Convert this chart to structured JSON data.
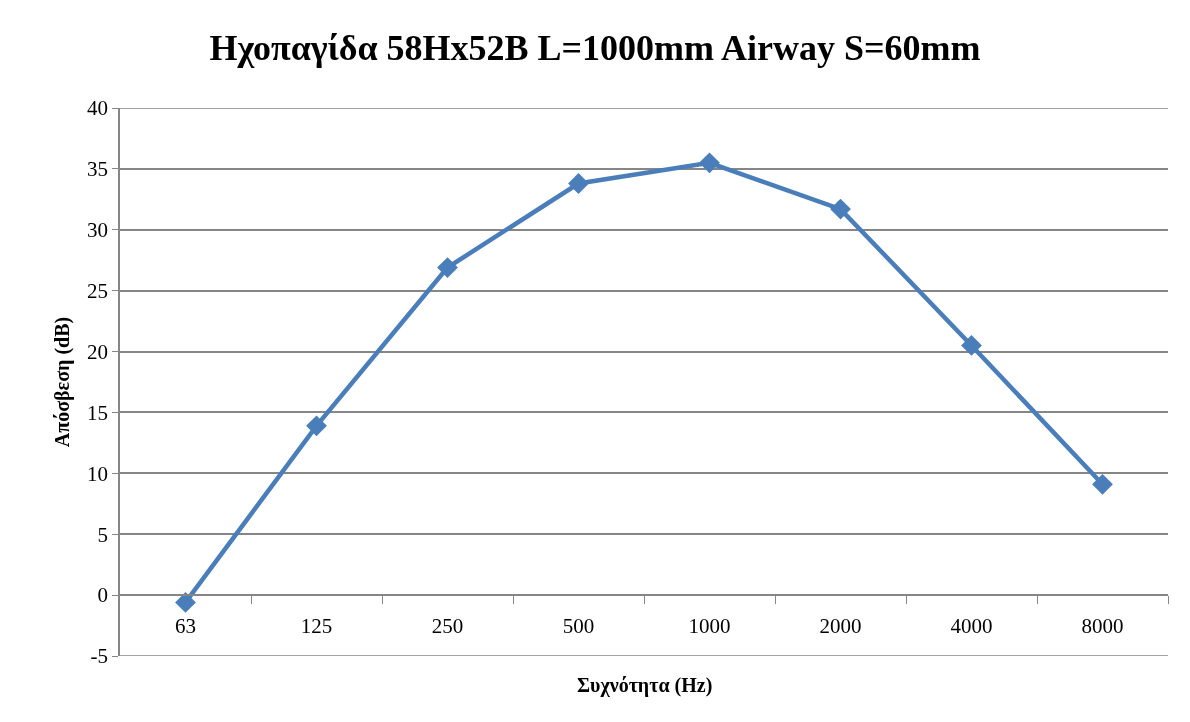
{
  "chart_data": {
    "type": "line",
    "title": "Ηχοπαγίδα 58Hx52B L=1000mm Airway S=60mm",
    "xlabel": "Συχνότητα (Hz)",
    "ylabel": "Απόσβεση (dB)",
    "categories": [
      "63",
      "125",
      "250",
      "500",
      "1000",
      "2000",
      "4000",
      "8000"
    ],
    "series": [
      {
        "color": "#4a7ebb",
        "values": [
          -0.6,
          13.9,
          26.9,
          33.8,
          35.5,
          31.7,
          20.5,
          9.1
        ]
      }
    ],
    "ylim": [
      -5,
      40
    ],
    "yticks": [
      -5,
      0,
      5,
      10,
      15,
      20,
      25,
      30,
      35,
      40
    ],
    "grid": "y",
    "marker": "diamond",
    "line_style": "solid"
  }
}
